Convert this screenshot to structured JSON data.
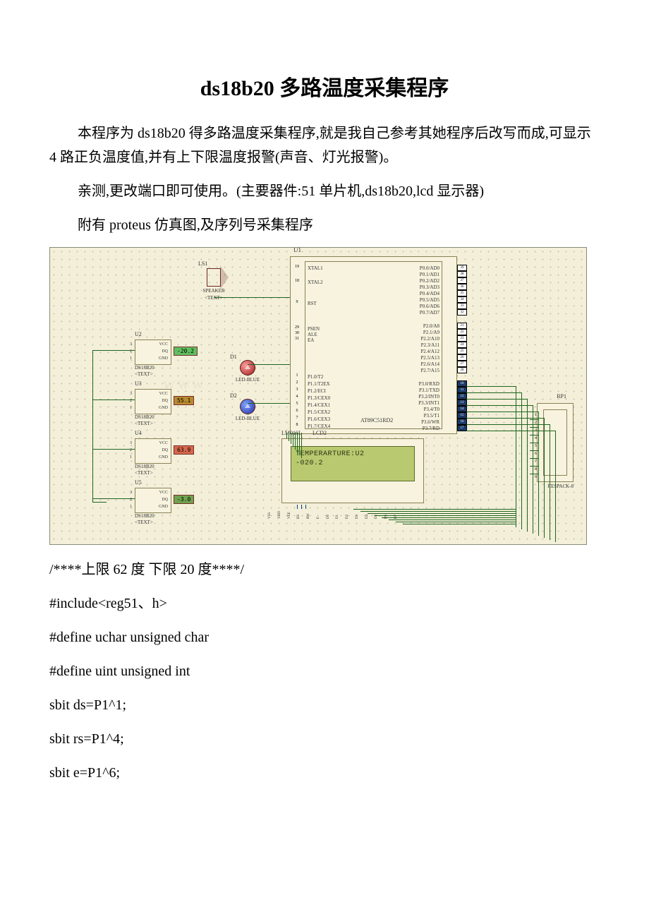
{
  "title": "ds18b20 多路温度采集程序",
  "para1": "本程序为 ds18b20 得多路温度采集程序,就是我自己参考其她程序后改写而成,可显示 4 路正负温度值,并有上下限温度报警(声音、灯光报警)。",
  "para2": "亲测,更改端口即可使用。(主要器件:51 单片机,ds18b20,lcd 显示器)",
  "para3": "附有 proteus 仿真图,及序列号采集程序",
  "code": [
    "/****上限 62 度 下限 20 度****/",
    "#include<reg51、h>",
    "#define uchar unsigned char",
    "#define uint unsigned int",
    "sbit ds=P1^1;",
    "sbit rs=P1^4;",
    "sbit e=P1^6;"
  ],
  "schematic": {
    "mcu_ref": "U1",
    "mcu_name": "AT89C51RD2",
    "pins_left": [
      "XTAL1",
      "XTAL2",
      "RST",
      "PSEN",
      "ALE",
      "EA",
      "P1.0/T2",
      "P1.1/T2EX",
      "P1.2/ECI",
      "P1.3/CEX0",
      "P1.4/CEX1",
      "P1.5/CEX2",
      "P1.6/CEX3",
      "P1.7/CEX4"
    ],
    "pins_left_nums": [
      "19",
      "18",
      "9",
      "29",
      "30",
      "31",
      "1",
      "2",
      "3",
      "4",
      "5",
      "6",
      "7",
      "8"
    ],
    "pins_right_p0": [
      "P0.0/AD0",
      "P0.1/AD1",
      "P0.2/AD2",
      "P0.3/AD3",
      "P0.4/AD4",
      "P0.5/AD5",
      "P0.6/AD6",
      "P0.7/AD7"
    ],
    "pins_right_p0_nums": [
      "39",
      "38",
      "37",
      "36",
      "35",
      "34",
      "33",
      "32"
    ],
    "pins_right_p2": [
      "P2.0/A8",
      "P2.1/A9",
      "P2.2/A10",
      "P2.3/A11",
      "P2.4/A12",
      "P2.5/A13",
      "P2.6/A14",
      "P2.7/A15"
    ],
    "pins_right_p2_nums": [
      "21",
      "22",
      "23",
      "24",
      "25",
      "26",
      "27",
      "28"
    ],
    "pins_right_p3": [
      "P3.0/RXD",
      "P3.1/TXD",
      "P3.2/INT0",
      "P3.3/INT1",
      "P3.4/T0",
      "P3.5/T1",
      "P3.6/WR",
      "P3.7/RD"
    ],
    "pins_right_p3_nums": [
      "10",
      "11",
      "12",
      "13",
      "14",
      "15",
      "16",
      "17"
    ],
    "speaker": {
      "ref": "LS1",
      "name": "SPEAKER",
      "sub": "<TEXT>"
    },
    "leds": [
      {
        "ref": "D1",
        "name": "LED-BLUE",
        "sub": "<TEXT>",
        "color": "#9e1c1c"
      },
      {
        "ref": "D2",
        "name": "LED-BLUE",
        "sub": "<TEXT>",
        "color": "#2a2fa3"
      }
    ],
    "sensors": [
      {
        "ref": "U2",
        "value": "-20.2",
        "bg": "#5fbf5f",
        "fg": "#000",
        "name": "DS18B20"
      },
      {
        "ref": "U3",
        "value": "55.1",
        "bg": "#b8892f",
        "fg": "#000",
        "name": "DS18B20"
      },
      {
        "ref": "U4",
        "value": "63.9",
        "bg": "#d6674a",
        "fg": "#000",
        "name": "DS18B20"
      },
      {
        "ref": "U5",
        "value": "-3.0",
        "bg": "#6fa24e",
        "fg": "#000",
        "name": "DS18B20"
      }
    ],
    "sensor_pins": [
      "VCC",
      "DQ",
      "GND"
    ],
    "sensor_pin_nums": [
      "3",
      "2",
      "1"
    ],
    "lcd": {
      "ref": "LM016L",
      "name": "LCD2",
      "line1": "TEMPERARTURE:U2",
      "line2": "-020.2",
      "pins": [
        "VSS",
        "VDD",
        "VEE",
        "RS",
        "RW",
        "E",
        "D0",
        "D1",
        "D2",
        "D3",
        "D4",
        "D5",
        "D6",
        "D7"
      ],
      "pin_nums": [
        "1",
        "2",
        "3",
        "4",
        "5",
        "6",
        "7",
        "8",
        "9",
        "10",
        "11",
        "12",
        "13",
        "14"
      ]
    },
    "rp": {
      "ref": "RP1",
      "name": "RESPACK-8",
      "pins": [
        "1",
        "2",
        "3",
        "4",
        "5",
        "6",
        "7",
        "8",
        "9"
      ]
    },
    "colors": {
      "bg": "#f3efd9",
      "wire": "#1f651f",
      "blue_wire": "#0a3f8a",
      "lcd_screen": "#b8c96f"
    }
  }
}
